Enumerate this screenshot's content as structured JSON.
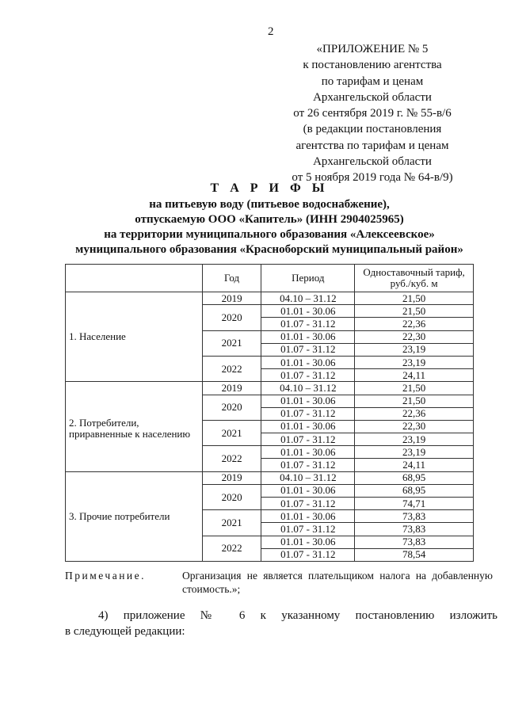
{
  "page_number": "2",
  "header_lines": [
    "«ПРИЛОЖЕНИЕ № 5",
    "к постановлению агентства",
    "по тарифам и ценам",
    "Архангельской области",
    "от 26 сентября 2019 г. № 55-в/6",
    "(в редакции постановления",
    "агентства по тарифам и ценам",
    "Архангельской области",
    "от 5 ноября 2019 года № 64-в/9)"
  ],
  "title_lines": [
    "Т А Р И Ф Ы",
    "на питьевую воду (питьевое водоснабжение),",
    "отпускаемую ООО «Капитель» (ИНН 2904025965)",
    "на территории муниципального образования «Алексеевское»",
    "муниципального образования «Красноборский муниципальный район»"
  ],
  "table": {
    "headers": [
      "",
      "Год",
      "Период",
      "Одноставочный тариф, руб./куб. м"
    ],
    "groups": [
      {
        "category": "1. Население",
        "years": [
          {
            "year": "2019",
            "rows": [
              [
                "04.10 – 31.12",
                "21,50"
              ]
            ]
          },
          {
            "year": "2020",
            "rows": [
              [
                "01.01 - 30.06",
                "21,50"
              ],
              [
                "01.07 - 31.12",
                "22,36"
              ]
            ]
          },
          {
            "year": "2021",
            "rows": [
              [
                "01.01 - 30.06",
                "22,30"
              ],
              [
                "01.07 - 31.12",
                "23,19"
              ]
            ]
          },
          {
            "year": "2022",
            "rows": [
              [
                "01.01 - 30.06",
                "23,19"
              ],
              [
                "01.07 - 31.12",
                "24,11"
              ]
            ]
          }
        ]
      },
      {
        "category": "2. Потребители, приравненные к населению",
        "years": [
          {
            "year": "2019",
            "rows": [
              [
                "04.10 – 31.12",
                "21,50"
              ]
            ]
          },
          {
            "year": "2020",
            "rows": [
              [
                "01.01 - 30.06",
                "21,50"
              ],
              [
                "01.07 - 31.12",
                "22,36"
              ]
            ]
          },
          {
            "year": "2021",
            "rows": [
              [
                "01.01 - 30.06",
                "22,30"
              ],
              [
                "01.07 - 31.12",
                "23,19"
              ]
            ]
          },
          {
            "year": "2022",
            "rows": [
              [
                "01.01 - 30.06",
                "23,19"
              ],
              [
                "01.07 - 31.12",
                "24,11"
              ]
            ]
          }
        ]
      },
      {
        "category": "3. Прочие потребители",
        "years": [
          {
            "year": "2019",
            "rows": [
              [
                "04.10 – 31.12",
                "68,95"
              ]
            ]
          },
          {
            "year": "2020",
            "rows": [
              [
                "01.01 - 30.06",
                "68,95"
              ],
              [
                "01.07 - 31.12",
                "74,71"
              ]
            ]
          },
          {
            "year": "2021",
            "rows": [
              [
                "01.01 - 30.06",
                "73,83"
              ],
              [
                "01.07 - 31.12",
                "73,83"
              ]
            ]
          },
          {
            "year": "2022",
            "rows": [
              [
                "01.01 - 30.06",
                "73,83"
              ],
              [
                "01.07 - 31.12",
                "78,54"
              ]
            ]
          }
        ]
      }
    ]
  },
  "note": {
    "label": "Примечание.",
    "text_line1": "Организация не является плательщиком налога на добавленную",
    "text_line2": "стоимость.»;"
  },
  "paragraph": {
    "line1": "4) приложение № 6 к указанному постановлению изложить",
    "line2": "в следующей редакции:"
  }
}
